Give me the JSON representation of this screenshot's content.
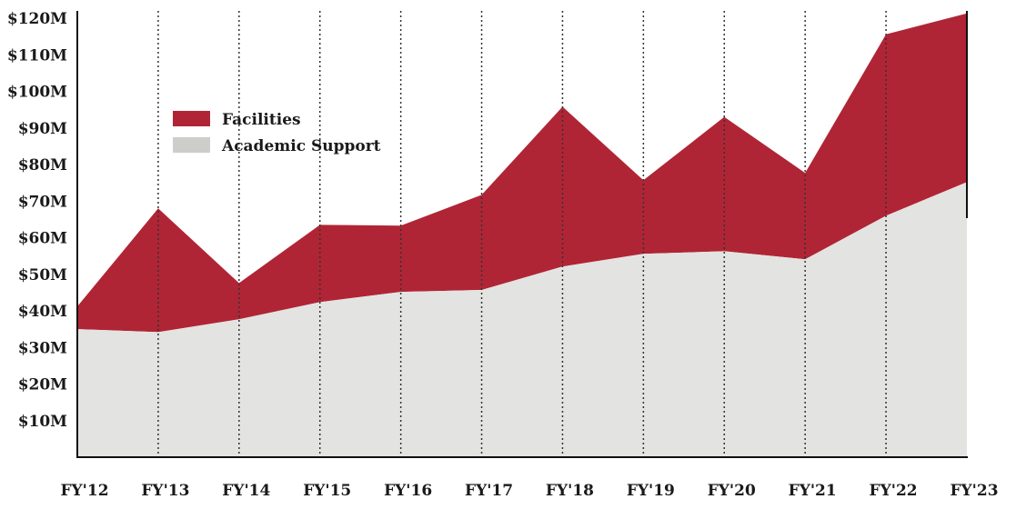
{
  "chart_data": {
    "type": "area",
    "stacked": true,
    "title": "",
    "xlabel": "",
    "ylabel": "",
    "categories": [
      "FY'12",
      "FY'13",
      "FY'14",
      "FY'15",
      "FY'16",
      "FY'17",
      "FY'18",
      "FY'19",
      "FY'20",
      "FY'21",
      "FY'22",
      "FY'23"
    ],
    "ylim": [
      0,
      120
    ],
    "yticks": [
      10,
      20,
      30,
      40,
      50,
      60,
      70,
      80,
      90,
      100,
      110,
      120
    ],
    "ytick_labels": [
      "$10M",
      "$20M",
      "$30M",
      "$40M",
      "$50M",
      "$60M",
      "$70M",
      "$80M",
      "$90M",
      "$100M",
      "$110M",
      "$120M"
    ],
    "series": [
      {
        "name": "Academic Support",
        "color": "#E3E3E1",
        "values": [
          35.0,
          34.2,
          37.7,
          42.4,
          45.2,
          45.7,
          52.1,
          55.6,
          56.3,
          54.1,
          66.0,
          75.2
        ]
      },
      {
        "name": "Facilities",
        "color": "#B02535",
        "values": [
          6.2,
          33.8,
          9.9,
          21.1,
          18.1,
          26.0,
          43.7,
          20.1,
          36.7,
          23.6,
          49.6,
          46.1
        ]
      }
    ],
    "legend": {
      "placement": "upper-left",
      "items": [
        "Facilities",
        "Academic Support"
      ]
    },
    "grid": "dotted vertical lines at each year"
  }
}
